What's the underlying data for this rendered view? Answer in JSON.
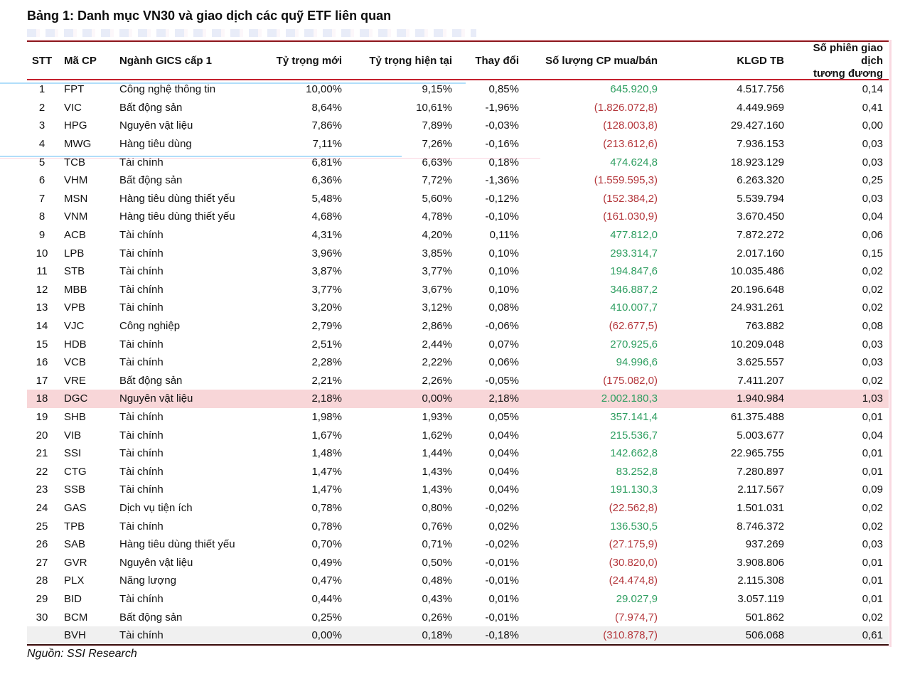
{
  "title": "Bảng 1: Danh mục VN30 và giao dịch các quỹ ETF liên quan",
  "source": "Nguồn: SSI Research",
  "colors": {
    "positive": "#2E9E60",
    "negative": "#B4373C",
    "highlight_pink": "#F8D6D8",
    "highlight_gray": "#F0F0F0",
    "rule_dark_maroon": "#8E2025",
    "rule_red": "#C4212F",
    "rule_bottom": "#3A1311"
  },
  "table": {
    "columns": [
      "STT",
      "Mã CP",
      "Ngành GICS cấp 1",
      "Tỷ trọng mới",
      "Tỷ trọng hiện tại",
      "Thay đổi",
      "Số lượng CP mua/bán",
      "KLGD TB",
      "Số phiên giao dịch\ntương đương"
    ],
    "rows": [
      {
        "highlight": "none",
        "cells": [
          "1",
          "FPT",
          "Công nghệ thông tin",
          "10,00%",
          "9,15%",
          "0,85%",
          "645.920,9",
          "4.517.756",
          "0,14"
        ]
      },
      {
        "highlight": "none",
        "cells": [
          "2",
          "VIC",
          "Bất động sản",
          "8,64%",
          "10,61%",
          "-1,96%",
          "(1.826.072,8)",
          "4.449.969",
          "0,41"
        ]
      },
      {
        "highlight": "none",
        "cells": [
          "3",
          "HPG",
          "Nguyên vật liệu",
          "7,86%",
          "7,89%",
          "-0,03%",
          "(128.003,8)",
          "29.427.160",
          "0,00"
        ]
      },
      {
        "highlight": "none",
        "cells": [
          "4",
          "MWG",
          "Hàng tiêu dùng",
          "7,11%",
          "7,26%",
          "-0,16%",
          "(213.612,6)",
          "7.936.153",
          "0,03"
        ]
      },
      {
        "highlight": "none",
        "cells": [
          "5",
          "TCB",
          "Tài chính",
          "6,81%",
          "6,63%",
          "0,18%",
          "474.624,8",
          "18.923.129",
          "0,03"
        ]
      },
      {
        "highlight": "none",
        "cells": [
          "6",
          "VHM",
          "Bất động sản",
          "6,36%",
          "7,72%",
          "-1,36%",
          "(1.559.595,3)",
          "6.263.320",
          "0,25"
        ]
      },
      {
        "highlight": "none",
        "cells": [
          "7",
          "MSN",
          "Hàng tiêu dùng thiết yếu",
          "5,48%",
          "5,60%",
          "-0,12%",
          "(152.384,2)",
          "5.539.794",
          "0,03"
        ]
      },
      {
        "highlight": "none",
        "cells": [
          "8",
          "VNM",
          "Hàng tiêu dùng thiết yếu",
          "4,68%",
          "4,78%",
          "-0,10%",
          "(161.030,9)",
          "3.670.450",
          "0,04"
        ]
      },
      {
        "highlight": "none",
        "cells": [
          "9",
          "ACB",
          "Tài chính",
          "4,31%",
          "4,20%",
          "0,11%",
          "477.812,0",
          "7.872.272",
          "0,06"
        ]
      },
      {
        "highlight": "none",
        "cells": [
          "10",
          "LPB",
          "Tài chính",
          "3,96%",
          "3,85%",
          "0,10%",
          "293.314,7",
          "2.017.160",
          "0,15"
        ]
      },
      {
        "highlight": "none",
        "cells": [
          "11",
          "STB",
          "Tài chính",
          "3,87%",
          "3,77%",
          "0,10%",
          "194.847,6",
          "10.035.486",
          "0,02"
        ]
      },
      {
        "highlight": "none",
        "cells": [
          "12",
          "MBB",
          "Tài chính",
          "3,77%",
          "3,67%",
          "0,10%",
          "346.887,2",
          "20.196.648",
          "0,02"
        ]
      },
      {
        "highlight": "none",
        "cells": [
          "13",
          "VPB",
          "Tài chính",
          "3,20%",
          "3,12%",
          "0,08%",
          "410.007,7",
          "24.931.261",
          "0,02"
        ]
      },
      {
        "highlight": "none",
        "cells": [
          "14",
          "VJC",
          "Công nghiệp",
          "2,79%",
          "2,86%",
          "-0,06%",
          "(62.677,5)",
          "763.882",
          "0,08"
        ]
      },
      {
        "highlight": "none",
        "cells": [
          "15",
          "HDB",
          "Tài chính",
          "2,51%",
          "2,44%",
          "0,07%",
          "270.925,6",
          "10.209.048",
          "0,03"
        ]
      },
      {
        "highlight": "none",
        "cells": [
          "16",
          "VCB",
          "Tài chính",
          "2,28%",
          "2,22%",
          "0,06%",
          "94.996,6",
          "3.625.557",
          "0,03"
        ]
      },
      {
        "highlight": "none",
        "cells": [
          "17",
          "VRE",
          "Bất động sản",
          "2,21%",
          "2,26%",
          "-0,05%",
          "(175.082,0)",
          "7.411.207",
          "0,02"
        ]
      },
      {
        "highlight": "pink",
        "cells": [
          "18",
          "DGC",
          "Nguyên vật liệu",
          "2,18%",
          "0,00%",
          "2,18%",
          "2.002.180,3",
          "1.940.984",
          "1,03"
        ]
      },
      {
        "highlight": "none",
        "cells": [
          "19",
          "SHB",
          "Tài chính",
          "1,98%",
          "1,93%",
          "0,05%",
          "357.141,4",
          "61.375.488",
          "0,01"
        ]
      },
      {
        "highlight": "none",
        "cells": [
          "20",
          "VIB",
          "Tài chính",
          "1,67%",
          "1,62%",
          "0,04%",
          "215.536,7",
          "5.003.677",
          "0,04"
        ]
      },
      {
        "highlight": "none",
        "cells": [
          "21",
          "SSI",
          "Tài chính",
          "1,48%",
          "1,44%",
          "0,04%",
          "142.662,8",
          "22.965.755",
          "0,01"
        ]
      },
      {
        "highlight": "none",
        "cells": [
          "22",
          "CTG",
          "Tài chính",
          "1,47%",
          "1,43%",
          "0,04%",
          "83.252,8",
          "7.280.897",
          "0,01"
        ]
      },
      {
        "highlight": "none",
        "cells": [
          "23",
          "SSB",
          "Tài chính",
          "1,47%",
          "1,43%",
          "0,04%",
          "191.130,3",
          "2.117.567",
          "0,09"
        ]
      },
      {
        "highlight": "none",
        "cells": [
          "24",
          "GAS",
          "Dịch vụ tiện ích",
          "0,78%",
          "0,80%",
          "-0,02%",
          "(22.562,8)",
          "1.501.031",
          "0,02"
        ]
      },
      {
        "highlight": "none",
        "cells": [
          "25",
          "TPB",
          "Tài chính",
          "0,78%",
          "0,76%",
          "0,02%",
          "136.530,5",
          "8.746.372",
          "0,02"
        ]
      },
      {
        "highlight": "none",
        "cells": [
          "26",
          "SAB",
          "Hàng tiêu dùng thiết yếu",
          "0,70%",
          "0,71%",
          "-0,02%",
          "(27.175,9)",
          "937.269",
          "0,03"
        ]
      },
      {
        "highlight": "none",
        "cells": [
          "27",
          "GVR",
          "Nguyên vật liệu",
          "0,49%",
          "0,50%",
          "-0,01%",
          "(30.820,0)",
          "3.908.806",
          "0,01"
        ]
      },
      {
        "highlight": "none",
        "cells": [
          "28",
          "PLX",
          "Năng lượng",
          "0,47%",
          "0,48%",
          "-0,01%",
          "(24.474,8)",
          "2.115.308",
          "0,01"
        ]
      },
      {
        "highlight": "none",
        "cells": [
          "29",
          "BID",
          "Tài chính",
          "0,44%",
          "0,43%",
          "0,01%",
          "29.027,9",
          "3.057.119",
          "0,01"
        ]
      },
      {
        "highlight": "none",
        "cells": [
          "30",
          "BCM",
          "Bất động sản",
          "0,25%",
          "0,26%",
          "-0,01%",
          "(7.974,7)",
          "501.862",
          "0,02"
        ]
      },
      {
        "highlight": "gray",
        "cells": [
          "",
          "BVH",
          "Tài chính",
          "0,00%",
          "0,18%",
          "-0,18%",
          "(310.878,7)",
          "506.068",
          "0,61"
        ]
      }
    ]
  }
}
